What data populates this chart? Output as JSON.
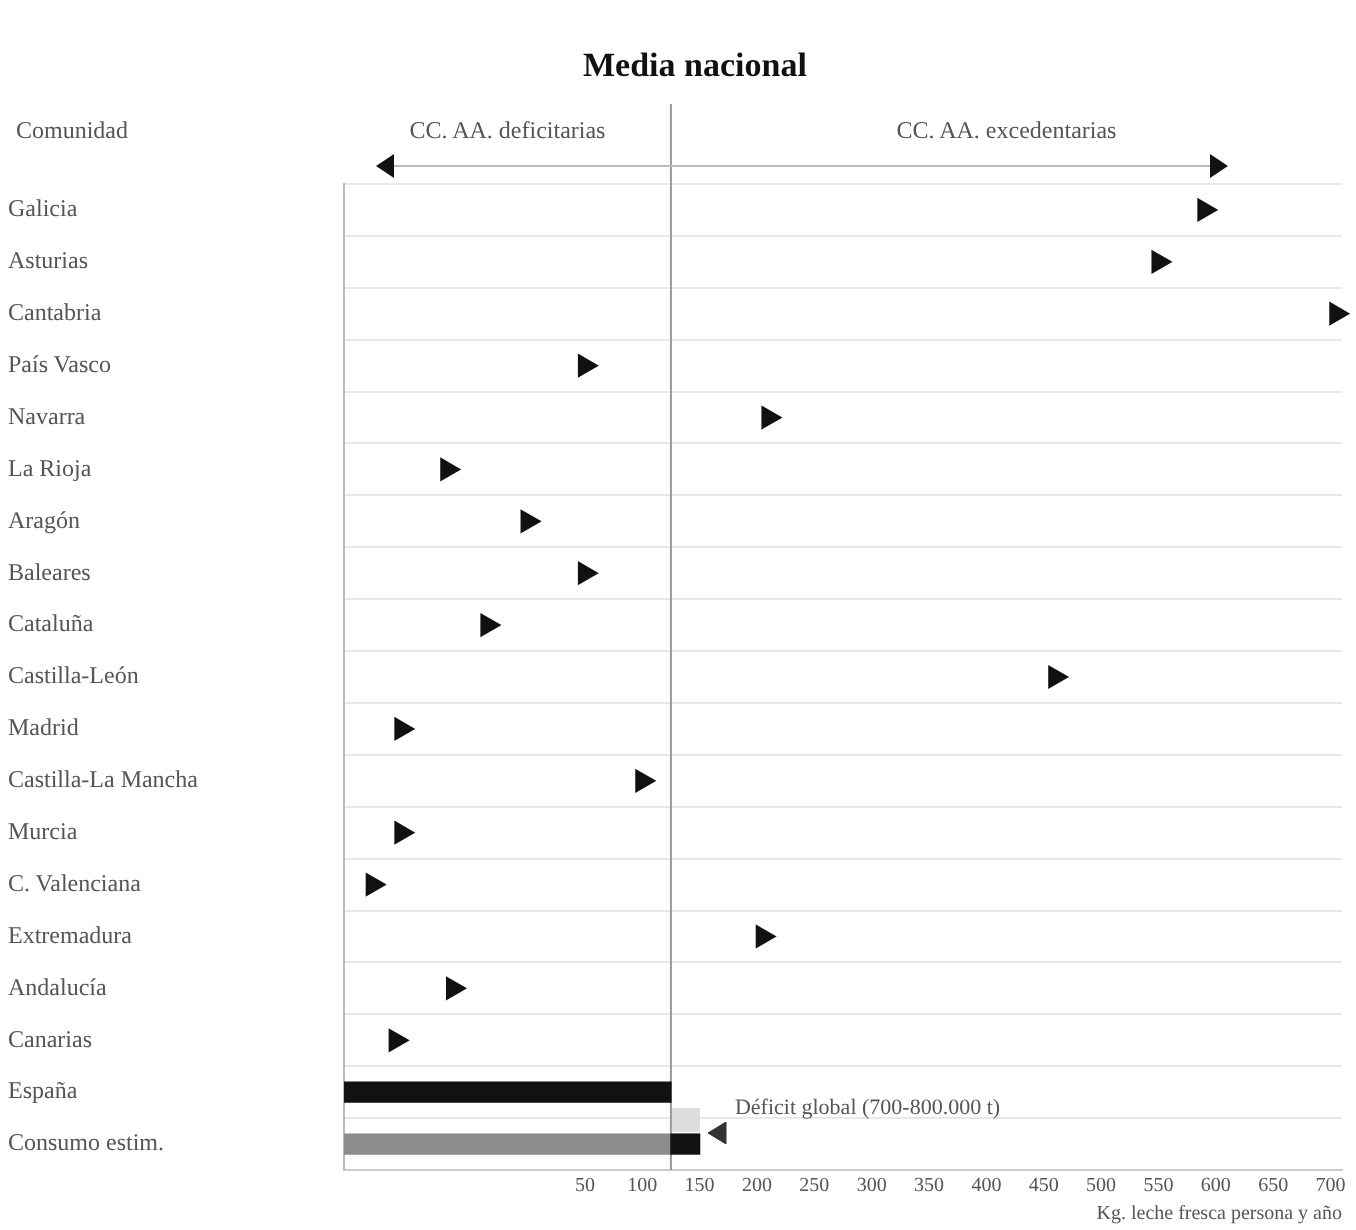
{
  "chart_data": {
    "type": "scatter",
    "orientation": "horizontal",
    "categories": [
      "Galicia",
      "Asturias",
      "Cantabria",
      "País Vasco",
      "Navarra",
      "La Rioja",
      "Aragón",
      "Baleares",
      "Cataluña",
      "Castilla-León",
      "Madrid",
      "Castilla-La Mancha",
      "Murcia",
      "C. Valenciana",
      "Extremadura",
      "Andalucía",
      "Canarias",
      "España",
      "Consumo estim."
    ],
    "series": [
      {
        "color": "#111111",
        "values": [
          590,
          550,
          705,
          50,
          210,
          -70,
          0,
          50,
          -35,
          460,
          -110,
          100,
          -110,
          -135,
          205,
          -65,
          -115,
          null,
          null
        ]
      },
      {
        "type": "bar",
        "color": "#111111",
        "base": [
          null,
          null,
          null,
          null,
          null,
          null,
          null,
          null,
          null,
          null,
          null,
          null,
          null,
          null,
          null,
          null,
          null,
          -160,
          125
        ],
        "values": [
          null,
          null,
          null,
          null,
          null,
          null,
          null,
          null,
          null,
          null,
          null,
          null,
          null,
          null,
          null,
          null,
          null,
          285,
          25
        ]
      },
      {
        "type": "bar",
        "color": "#8c8c8c",
        "base": [
          null,
          null,
          null,
          null,
          null,
          null,
          null,
          null,
          null,
          null,
          null,
          null,
          null,
          null,
          null,
          null,
          null,
          null,
          -160
        ],
        "values": [
          null,
          null,
          null,
          null,
          null,
          null,
          null,
          null,
          null,
          null,
          null,
          null,
          null,
          null,
          null,
          null,
          null,
          null,
          285
        ]
      }
    ],
    "xlabel": "Kg. leche fresca persona y año",
    "xlim": [
      -160,
      710
    ],
    "xticks": [
      50,
      100,
      150,
      200,
      250,
      300,
      350,
      400,
      450,
      500,
      550,
      600,
      650,
      700
    ],
    "ref_lines": [
      {
        "axis": "x",
        "value": 125,
        "label": "Media nacional",
        "color": "#999999"
      }
    ],
    "annotations": [
      "Comunidad",
      "CC. AA. deficitarias",
      "CC. AA. excedentarias",
      "Déficit global (700-800.000 t)"
    ],
    "marker": "triangle",
    "grid": "y",
    "legend": false
  }
}
